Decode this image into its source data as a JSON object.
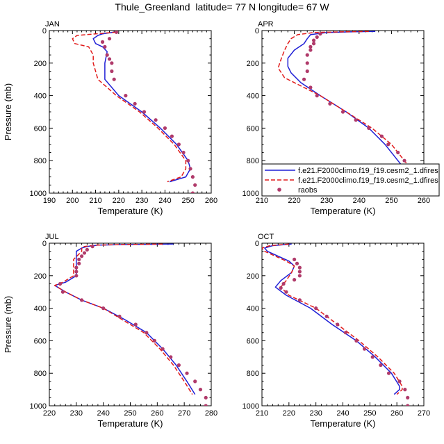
{
  "title": "Thule_Greenland  latitude= 77 N longitude= 67 W",
  "colors": {
    "model1": "#1f1fd6",
    "model2": "#e11b1b",
    "raobs": "#b03a6a"
  },
  "legend": {
    "entries": [
      {
        "label": "f.e21.F2000climo.f19_f19.cesm2_1.dfires",
        "style": "solid"
      },
      {
        "label": "f.e21.F2000climo.f19_f19.cesm2_1.dfires",
        "style": "dashed"
      },
      {
        "label": "raobs",
        "style": "marker"
      }
    ]
  },
  "chart_data": [
    {
      "type": "line",
      "panel_label": "JAN",
      "xlabel": "Temperature (K)",
      "ylabel": "Pressure (mb)",
      "xlim": [
        190,
        260
      ],
      "ylim": [
        1000,
        0
      ],
      "xticks": [
        190,
        200,
        210,
        220,
        230,
        240,
        250,
        260
      ],
      "yticks": [
        0,
        200,
        400,
        600,
        800,
        1000
      ],
      "series": [
        {
          "style": "solid",
          "points": [
            [
              218,
              10
            ],
            [
              213,
              20
            ],
            [
              211,
              30
            ],
            [
              209,
              50
            ],
            [
              210,
              80
            ],
            [
              213,
              100
            ],
            [
              215,
              130
            ],
            [
              214,
              200
            ],
            [
              214,
              300
            ],
            [
              220,
              400
            ],
            [
              230,
              500
            ],
            [
              238,
              600
            ],
            [
              245,
              700
            ],
            [
              250,
              800
            ],
            [
              251,
              850
            ],
            [
              249,
              900
            ],
            [
              242,
              930
            ]
          ]
        },
        {
          "style": "dashed",
          "points": [
            [
              219,
              10
            ],
            [
              210,
              20
            ],
            [
              202,
              30
            ],
            [
              200,
              50
            ],
            [
              201,
              80
            ],
            [
              207,
              100
            ],
            [
              209,
              150
            ],
            [
              209,
              200
            ],
            [
              211,
              300
            ],
            [
              219,
              400
            ],
            [
              229,
              500
            ],
            [
              237,
              600
            ],
            [
              244,
              700
            ],
            [
              249,
              800
            ],
            [
              249,
              850
            ],
            [
              247,
              900
            ],
            [
              241,
              930
            ]
          ]
        },
        {
          "style": "markers",
          "points": [
            [
              219,
              10
            ],
            [
              216,
              50
            ],
            [
              213,
              70
            ],
            [
              214,
              100
            ],
            [
              215,
              150
            ],
            [
              216,
              175
            ],
            [
              217,
              200
            ],
            [
              217,
              250
            ],
            [
              218,
              300
            ],
            [
              223,
              400
            ],
            [
              227,
              450
            ],
            [
              231,
              500
            ],
            [
              236,
              550
            ],
            [
              240,
              600
            ],
            [
              243,
              650
            ],
            [
              246,
              700
            ],
            [
              248,
              750
            ],
            [
              250,
              800
            ],
            [
              251,
              850
            ],
            [
              252,
              900
            ],
            [
              253,
              950
            ],
            [
              252,
              1000
            ]
          ]
        }
      ]
    },
    {
      "type": "line",
      "panel_label": "APR",
      "xlabel": "Temperature (K)",
      "ylabel": "",
      "xlim": [
        210,
        260
      ],
      "ylim": [
        1000,
        0
      ],
      "xticks": [
        210,
        220,
        230,
        240,
        250,
        260
      ],
      "yticks": [
        0,
        200,
        400,
        600,
        800,
        1000
      ],
      "series": [
        {
          "style": "solid",
          "points": [
            [
              245,
              5
            ],
            [
              237,
              8
            ],
            [
              230,
              12
            ],
            [
              225,
              25
            ],
            [
              224,
              50
            ],
            [
              223,
              80
            ],
            [
              220,
              120
            ],
            [
              218,
              170
            ],
            [
              218,
              220
            ],
            [
              219,
              260
            ],
            [
              222,
              320
            ],
            [
              228,
              400
            ],
            [
              236,
              500
            ],
            [
              243,
              600
            ],
            [
              248,
              700
            ],
            [
              252,
              800
            ],
            [
              254,
              850
            ],
            [
              255,
              900
            ],
            [
              252,
              930
            ]
          ]
        },
        {
          "style": "dashed",
          "points": [
            [
              243,
              5
            ],
            [
              234,
              8
            ],
            [
              226,
              12
            ],
            [
              221,
              25
            ],
            [
              219,
              50
            ],
            [
              218,
              80
            ],
            [
              217,
              120
            ],
            [
              216,
              170
            ],
            [
              215,
              230
            ],
            [
              217,
              290
            ],
            [
              222,
              340
            ],
            [
              228,
              400
            ],
            [
              236,
              500
            ],
            [
              244,
              600
            ],
            [
              250,
              700
            ],
            [
              254,
              800
            ],
            [
              256,
              850
            ],
            [
              257,
              900
            ],
            [
              253,
              930
            ]
          ]
        },
        {
          "style": "markers",
          "points": [
            [
              228,
              20
            ],
            [
              227,
              40
            ],
            [
              226,
              60
            ],
            [
              226,
              80
            ],
            [
              225,
              100
            ],
            [
              225,
              120
            ],
            [
              224,
              150
            ],
            [
              224,
              200
            ],
            [
              224,
              250
            ],
            [
              223,
              300
            ],
            [
              225,
              350
            ],
            [
              227,
              400
            ],
            [
              231,
              450
            ],
            [
              235,
              500
            ],
            [
              239,
              550
            ],
            [
              243,
              600
            ],
            [
              247,
              650
            ],
            [
              249,
              700
            ],
            [
              252,
              750
            ],
            [
              254,
              800
            ],
            [
              256,
              850
            ],
            [
              256,
              900
            ],
            [
              257,
              950
            ],
            [
              257,
              1000
            ]
          ]
        }
      ]
    },
    {
      "type": "line",
      "panel_label": "JUL",
      "xlabel": "Temperature (K)",
      "ylabel": "Pressure (mb)",
      "xlim": [
        220,
        280
      ],
      "ylim": [
        1000,
        0
      ],
      "xticks": [
        220,
        230,
        240,
        250,
        260,
        270,
        280
      ],
      "yticks": [
        0,
        200,
        400,
        600,
        800,
        1000
      ],
      "series": [
        {
          "style": "solid",
          "points": [
            [
              266,
              5
            ],
            [
              250,
              8
            ],
            [
              238,
              12
            ],
            [
              234,
              20
            ],
            [
              232,
              30
            ],
            [
              230,
              50
            ],
            [
              230,
              100
            ],
            [
              230,
              150
            ],
            [
              230,
              200
            ],
            [
              226,
              240
            ],
            [
              222,
              260
            ],
            [
              226,
              300
            ],
            [
              232,
              350
            ],
            [
              240,
              400
            ],
            [
              248,
              470
            ],
            [
              256,
              550
            ],
            [
              262,
              650
            ],
            [
              267,
              750
            ],
            [
              271,
              850
            ],
            [
              274,
              930
            ]
          ]
        },
        {
          "style": "dashed",
          "points": [
            [
              262,
              5
            ],
            [
              248,
              8
            ],
            [
              237,
              12
            ],
            [
              233,
              20
            ],
            [
              232,
              30
            ],
            [
              232,
              50
            ],
            [
              229,
              100
            ],
            [
              229,
              150
            ],
            [
              229,
              200
            ],
            [
              225,
              240
            ],
            [
              222,
              260
            ],
            [
              226,
              300
            ],
            [
              232,
              350
            ],
            [
              240,
              400
            ],
            [
              247,
              470
            ],
            [
              255,
              550
            ],
            [
              261,
              650
            ],
            [
              266,
              750
            ],
            [
              270,
              850
            ],
            [
              273,
              930
            ]
          ]
        },
        {
          "style": "markers",
          "points": [
            [
              236,
              20
            ],
            [
              234,
              40
            ],
            [
              233,
              60
            ],
            [
              232,
              80
            ],
            [
              231,
              100
            ],
            [
              231,
              125
            ],
            [
              230,
              150
            ],
            [
              230,
              175
            ],
            [
              230,
              200
            ],
            [
              224,
              250
            ],
            [
              225,
              300
            ],
            [
              232,
              350
            ],
            [
              240,
              400
            ],
            [
              246,
              450
            ],
            [
              252,
              500
            ],
            [
              256,
              550
            ],
            [
              259,
              600
            ],
            [
              262,
              650
            ],
            [
              265,
              700
            ],
            [
              268,
              750
            ],
            [
              271,
              800
            ],
            [
              274,
              850
            ],
            [
              276,
              900
            ],
            [
              278,
              950
            ],
            [
              278,
              1000
            ]
          ]
        }
      ]
    },
    {
      "type": "line",
      "panel_label": "OCT",
      "xlabel": "Temperature (K)",
      "ylabel": "",
      "xlim": [
        210,
        270
      ],
      "ylim": [
        1000,
        0
      ],
      "xticks": [
        210,
        220,
        230,
        240,
        250,
        260,
        270
      ],
      "yticks": [
        0,
        200,
        400,
        600,
        800,
        1000
      ],
      "series": [
        {
          "style": "solid",
          "points": [
            [
              221,
              5
            ],
            [
              214,
              15
            ],
            [
              211,
              30
            ],
            [
              212,
              50
            ],
            [
              216,
              80
            ],
            [
              220,
              110
            ],
            [
              222,
              140
            ],
            [
              221,
              180
            ],
            [
              217,
              230
            ],
            [
              215,
              270
            ],
            [
              219,
              320
            ],
            [
              228,
              400
            ],
            [
              236,
              500
            ],
            [
              245,
              600
            ],
            [
              252,
              700
            ],
            [
              258,
              800
            ],
            [
              261,
              880
            ],
            [
              261,
              900
            ],
            [
              259,
              930
            ]
          ]
        },
        {
          "style": "dashed",
          "points": [
            [
              220,
              5
            ],
            [
              213,
              15
            ],
            [
              210,
              30
            ],
            [
              211,
              50
            ],
            [
              215,
              80
            ],
            [
              219,
              110
            ],
            [
              222,
              140
            ],
            [
              221,
              180
            ],
            [
              219,
              230
            ],
            [
              217,
              270
            ],
            [
              220,
              320
            ],
            [
              230,
              400
            ],
            [
              238,
              500
            ],
            [
              246,
              600
            ],
            [
              253,
              700
            ],
            [
              259,
              800
            ],
            [
              262,
              880
            ],
            [
              262,
              900
            ],
            [
              260,
              930
            ]
          ]
        },
        {
          "style": "markers",
          "points": [
            [
              222,
              100
            ],
            [
              223,
              125
            ],
            [
              224,
              150
            ],
            [
              224,
              175
            ],
            [
              224,
              200
            ],
            [
              222,
              225
            ],
            [
              218,
              250
            ],
            [
              217,
              275
            ],
            [
              219,
              300
            ],
            [
              224,
              350
            ],
            [
              230,
              400
            ],
            [
              234,
              450
            ],
            [
              238,
              500
            ],
            [
              241,
              550
            ],
            [
              245,
              600
            ],
            [
              248,
              650
            ],
            [
              251,
              700
            ],
            [
              254,
              750
            ],
            [
              257,
              800
            ],
            [
              261,
              850
            ],
            [
              263,
              900
            ],
            [
              264,
              950
            ],
            [
              264,
              1000
            ]
          ]
        }
      ]
    }
  ]
}
